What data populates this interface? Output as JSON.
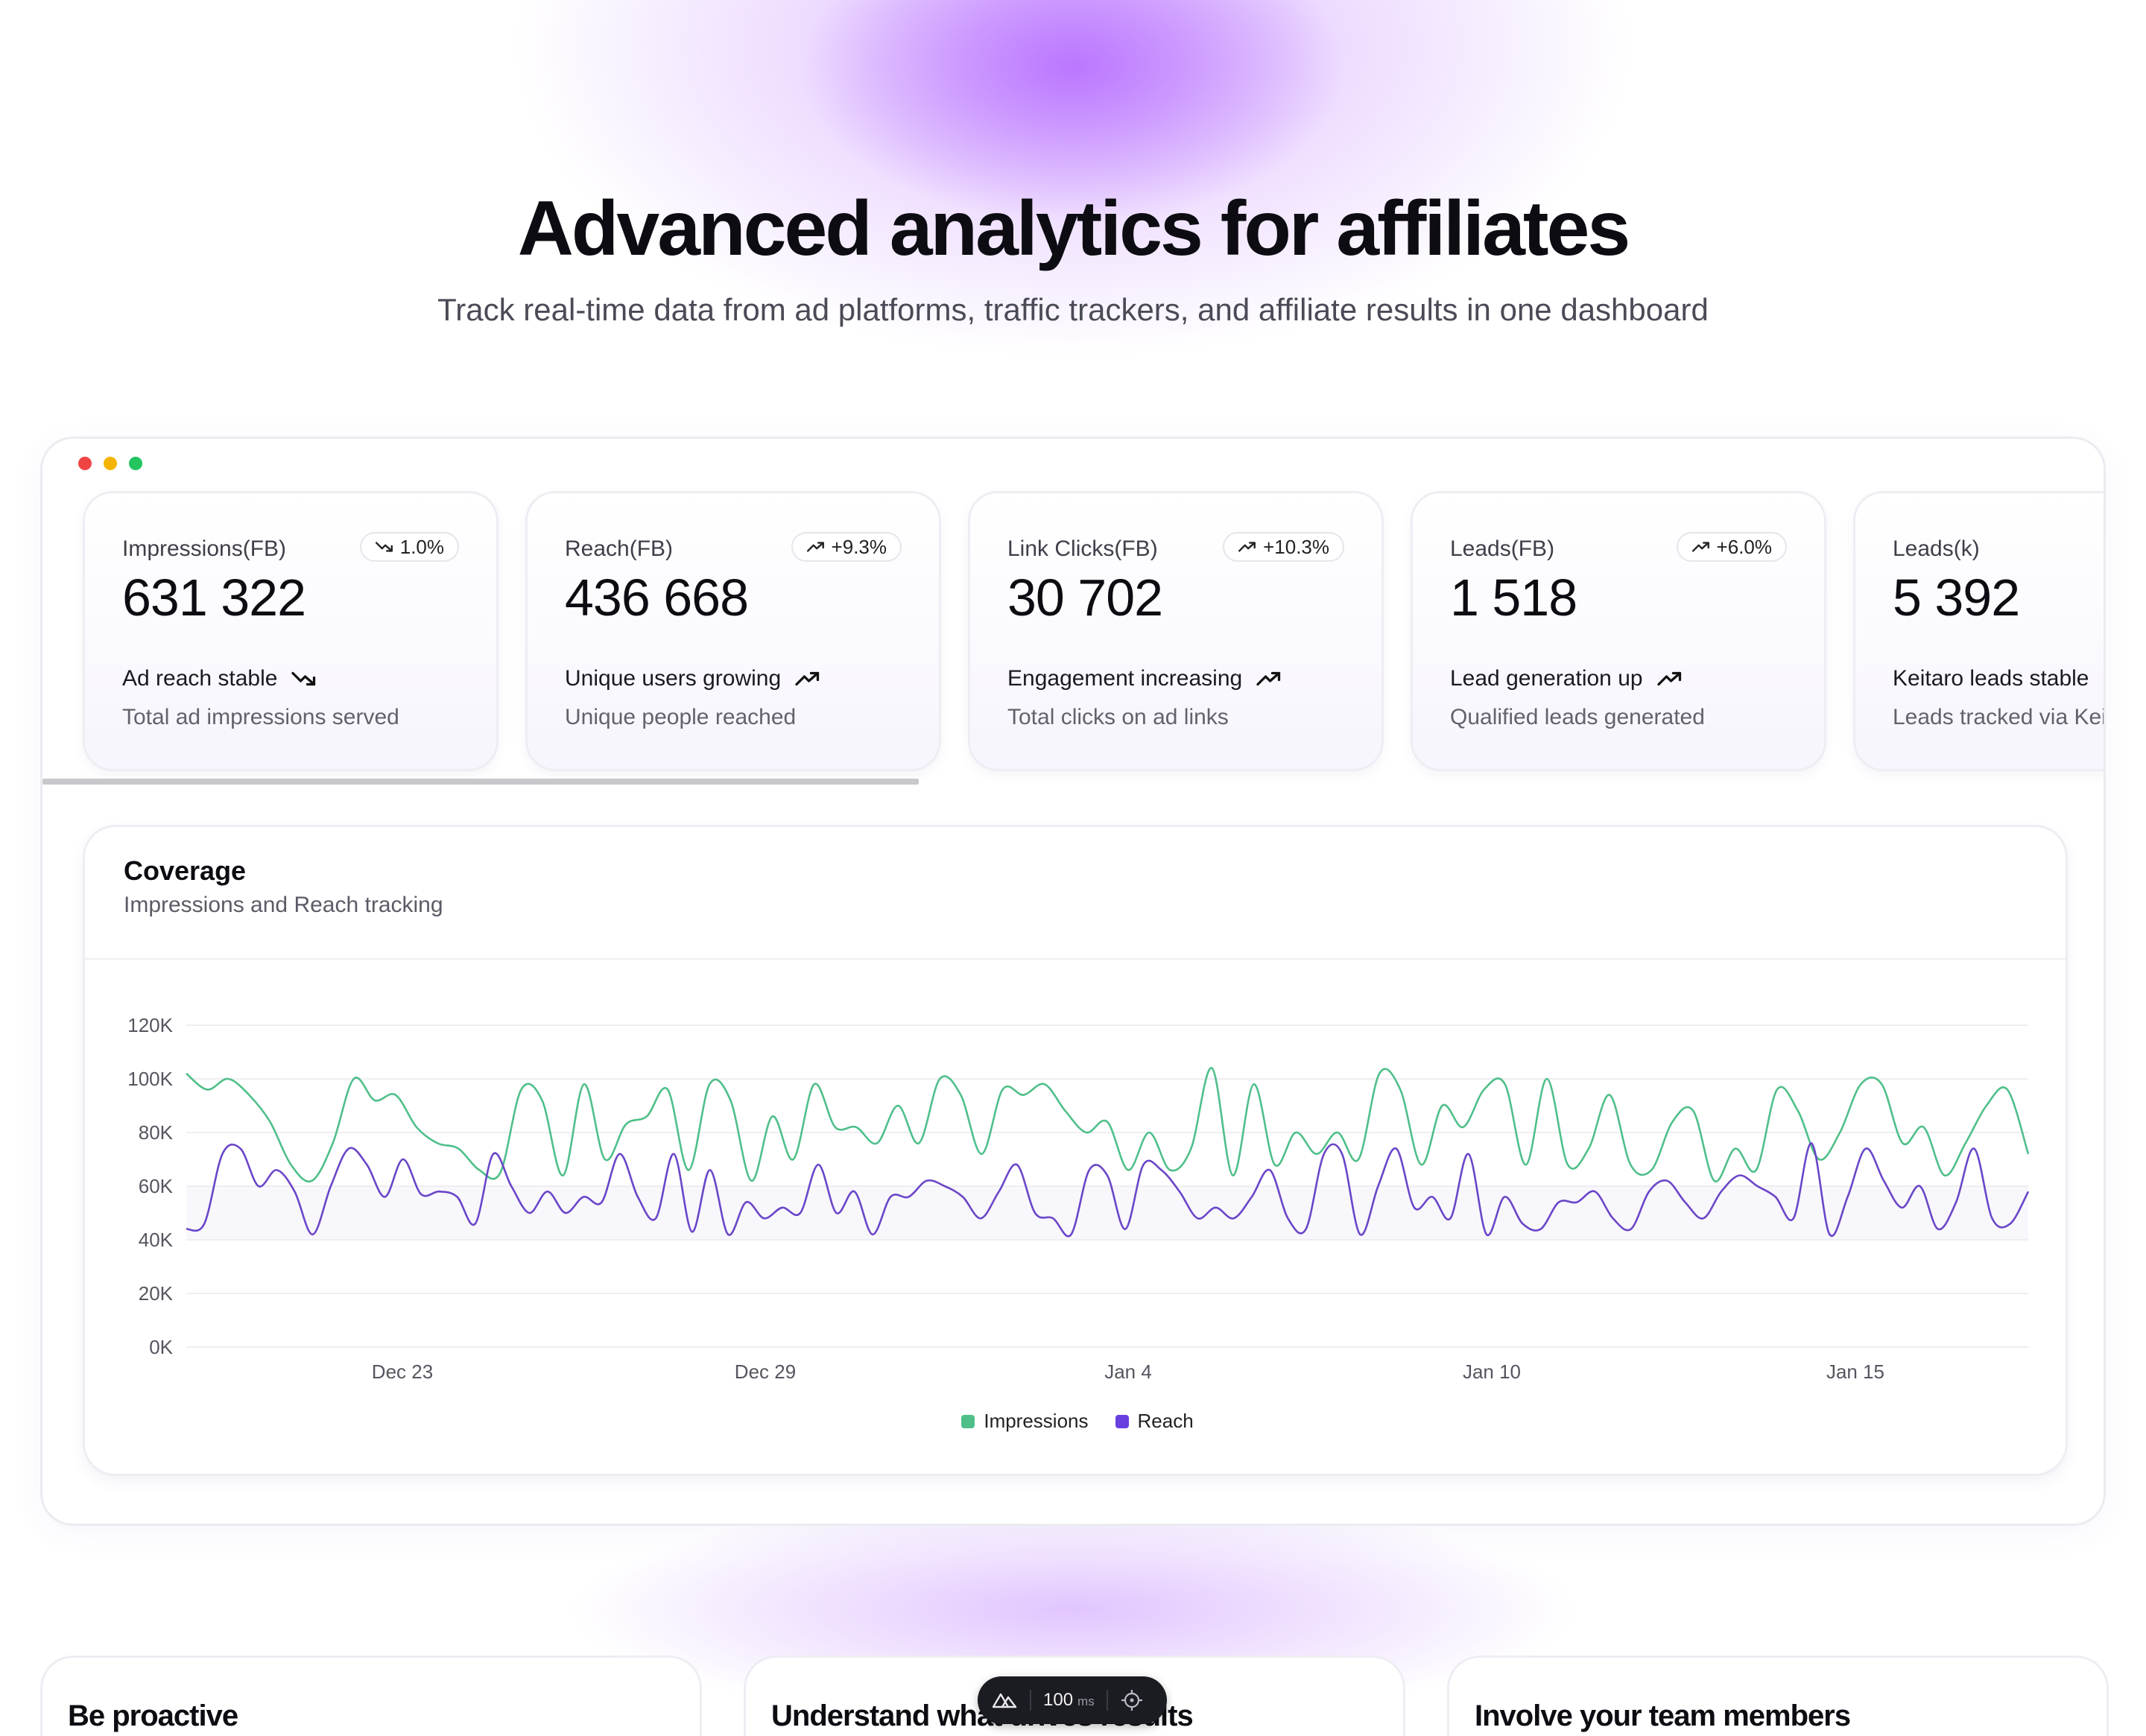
{
  "hero": {
    "title": "Advanced analytics for affiliates",
    "subtitle": "Track real-time data from ad platforms, traffic trackers, and affiliate results in one dashboard"
  },
  "metrics": [
    {
      "name": "Impressions(FB)",
      "change": "1.0%",
      "trend": "down",
      "value": "631 322",
      "status": "Ad reach stable",
      "description": "Total ad impressions served"
    },
    {
      "name": "Reach(FB)",
      "change": "+9.3%",
      "trend": "up",
      "value": "436 668",
      "status": "Unique users growing",
      "description": "Unique people reached"
    },
    {
      "name": "Link Clicks(FB)",
      "change": "+10.3%",
      "trend": "up",
      "value": "30 702",
      "status": "Engagement increasing",
      "description": "Total clicks on ad links"
    },
    {
      "name": "Leads(FB)",
      "change": "+6.0%",
      "trend": "up",
      "value": "1 518",
      "status": "Lead generation up",
      "description": "Qualified leads generated"
    },
    {
      "name": "Leads(k)",
      "change": "",
      "trend": "down",
      "value": "5 392",
      "status": "Keitaro leads stable",
      "description": "Leads tracked via Keit"
    }
  ],
  "coverage": {
    "title": "Coverage",
    "subtitle": "Impressions and Reach tracking"
  },
  "chart_data": {
    "type": "line",
    "title": "Coverage",
    "subtitle": "Impressions and Reach tracking",
    "y_ticks": [
      "0K",
      "20K",
      "40K",
      "60K",
      "80K",
      "100K",
      "120K"
    ],
    "ylim": [
      0,
      120000
    ],
    "x_tick_labels": [
      "Dec 23",
      "Dec 29",
      "Jan 4",
      "Jan 10",
      "Jan 15"
    ],
    "grid": true,
    "legend_position": "bottom-center",
    "series": [
      {
        "name": "Impressions",
        "color": "#4fbf8a",
        "values": [
          102000,
          96000,
          100000,
          94000,
          84000,
          68000,
          62000,
          76000,
          100000,
          92000,
          94000,
          82000,
          76000,
          74000,
          66000,
          65000,
          96000,
          92000,
          64000,
          98000,
          70000,
          83000,
          86000,
          96000,
          66000,
          98000,
          92000,
          62000,
          86000,
          70000,
          98000,
          82000,
          82000,
          76000,
          90000,
          76000,
          100000,
          94000,
          72000,
          96000,
          94000,
          98000,
          88000,
          80000,
          84000,
          66000,
          80000,
          66000,
          74000,
          104000,
          64000,
          98000,
          68000,
          80000,
          72000,
          80000,
          70000,
          102000,
          96000,
          68000,
          90000,
          82000,
          96000,
          98000,
          68000,
          100000,
          68000,
          74000,
          94000,
          68000,
          66000,
          84000,
          88000,
          62000,
          74000,
          66000,
          96000,
          88000,
          70000,
          80000,
          98000,
          98000,
          76000,
          82000,
          64000,
          76000,
          90000,
          96000,
          72000
        ]
      },
      {
        "name": "Reach",
        "color": "#6a46c8",
        "values": [
          44000,
          46000,
          72000,
          74000,
          60000,
          66000,
          58000,
          42000,
          60000,
          74000,
          68000,
          56000,
          70000,
          57000,
          58000,
          56000,
          46000,
          72000,
          60000,
          50000,
          58000,
          50000,
          56000,
          54000,
          72000,
          56000,
          48000,
          72000,
          43000,
          66000,
          42000,
          54000,
          48000,
          52000,
          50000,
          68000,
          50000,
          58000,
          42000,
          56000,
          56000,
          62000,
          60000,
          56000,
          48000,
          58000,
          68000,
          50000,
          48000,
          42000,
          66000,
          64000,
          44000,
          68000,
          66000,
          58000,
          48000,
          52000,
          48000,
          56000,
          66000,
          48000,
          44000,
          72000,
          72000,
          42000,
          60000,
          74000,
          52000,
          56000,
          48000,
          72000,
          42000,
          56000,
          46000,
          44000,
          54000,
          54000,
          58000,
          48000,
          44000,
          58000,
          62000,
          54000,
          48000,
          58000,
          64000,
          60000,
          56000,
          48000,
          76000,
          42000,
          56000,
          74000,
          62000,
          52000,
          60000,
          44000,
          54000,
          74000,
          48000,
          46000,
          58000
        ]
      }
    ]
  },
  "features": [
    {
      "title": "Be proactive"
    },
    {
      "title": "Understand what drives results"
    },
    {
      "title": "Involve your team members"
    }
  ],
  "devtool": {
    "value": "100",
    "unit": "ms"
  }
}
